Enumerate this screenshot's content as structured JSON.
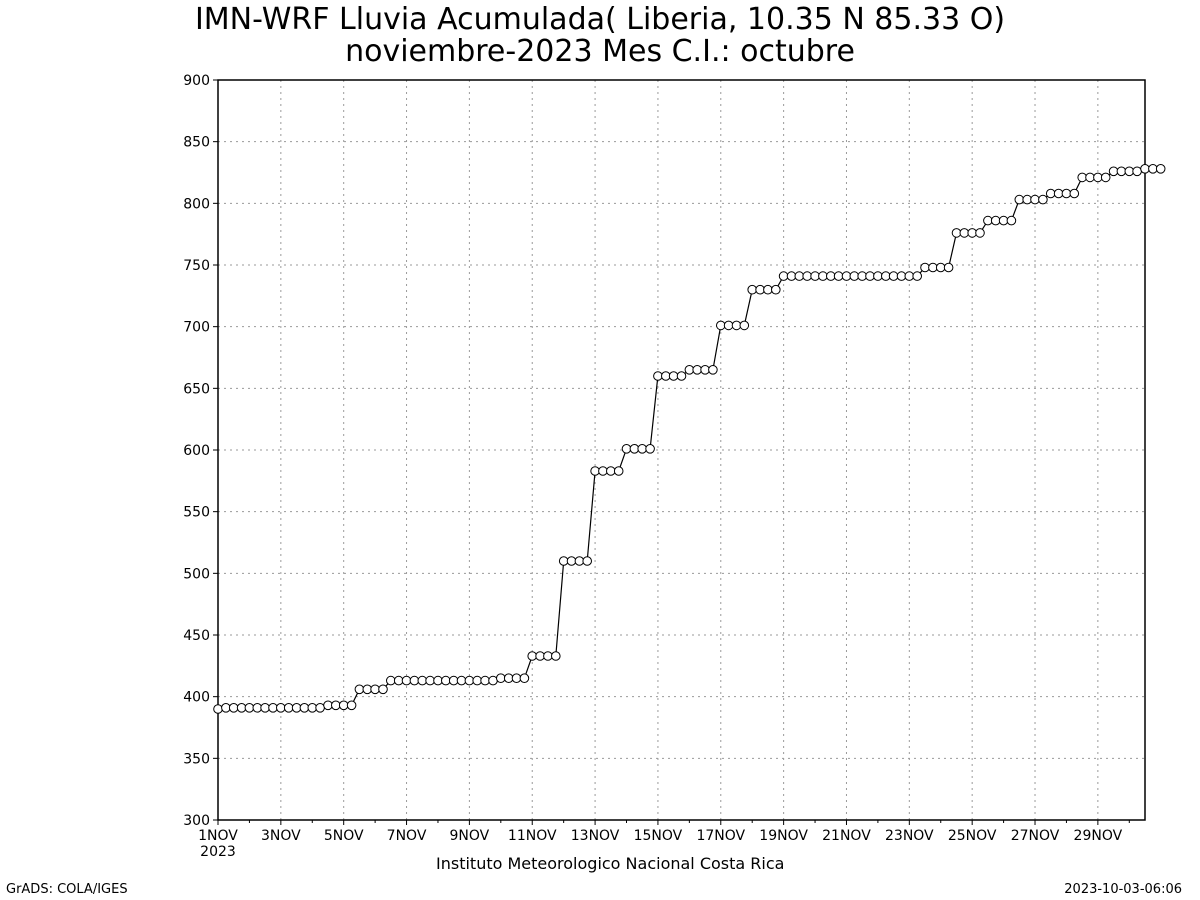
{
  "title_line1": "IMN-WRF  Lluvia Acumulada( Liberia, 10.35  N 85.33  O)",
  "title_line2": "noviembre-2023 Mes C.I.: octubre",
  "credit": "Instituto Meteorologico Nacional Costa Rica",
  "footer_left": "GrADS: COLA/IGES",
  "footer_right": "2023-10-03-06:06",
  "colors": {
    "line": "#000000",
    "marker_fill": "#ffffff",
    "grid": "#9a9a9a",
    "background": "#ffffff"
  },
  "chart_data": {
    "type": "line",
    "title": "IMN-WRF  Lluvia Acumulada( Liberia, 10.35  N 85.33  O)",
    "subtitle": "noviembre-2023 Mes C.I.: octubre",
    "xlabel": "",
    "ylabel": "",
    "ylim": [
      300,
      900
    ],
    "xlim": [
      "2023-11-01 00:00",
      "2023-11-30 12:00"
    ],
    "grid": true,
    "y_ticks": [
      "300",
      "350",
      "400",
      "450",
      "500",
      "550",
      "600",
      "650",
      "700",
      "750",
      "800",
      "850",
      "900"
    ],
    "x_ticks": [
      "1NOV",
      "3NOV",
      "5NOV",
      "7NOV",
      "9NOV",
      "11NOV",
      "13NOV",
      "15NOV",
      "17NOV",
      "19NOV",
      "21NOV",
      "23NOV",
      "25NOV",
      "27NOV",
      "29NOV"
    ],
    "x_tick_dates": [
      "2023-11-01",
      "2023-11-03",
      "2023-11-05",
      "2023-11-07",
      "2023-11-09",
      "2023-11-11",
      "2023-11-13",
      "2023-11-15",
      "2023-11-17",
      "2023-11-19",
      "2023-11-21",
      "2023-11-23",
      "2023-11-25",
      "2023-11-27",
      "2023-11-29"
    ],
    "x_year_label": "2023",
    "series": [
      {
        "marker": "open-circle",
        "step_hours": 6,
        "x_start": "2023-11-01 00:00",
        "values": [
          390,
          391,
          391,
          391,
          391,
          391,
          391,
          391,
          391,
          391,
          391,
          391,
          391,
          391,
          393,
          393,
          393,
          393,
          406,
          406,
          406,
          406,
          413,
          413,
          413,
          413,
          413,
          413,
          413,
          413,
          413,
          413,
          413,
          413,
          413,
          413,
          415,
          415,
          415,
          415,
          433,
          433,
          433,
          433,
          510,
          510,
          510,
          510,
          583,
          583,
          583,
          583,
          601,
          601,
          601,
          601,
          660,
          660,
          660,
          660,
          665,
          665,
          665,
          665,
          701,
          701,
          701,
          701,
          730,
          730,
          730,
          730,
          741,
          741,
          741,
          741,
          741,
          741,
          741,
          741,
          741,
          741,
          741,
          741,
          741,
          741,
          741,
          741,
          741,
          741,
          748,
          748,
          748,
          748,
          776,
          776,
          776,
          776,
          786,
          786,
          786,
          786,
          803,
          803,
          803,
          803,
          808,
          808,
          808,
          808,
          821,
          821,
          821,
          821,
          826,
          826,
          826,
          826,
          828,
          828,
          828
        ]
      }
    ]
  }
}
